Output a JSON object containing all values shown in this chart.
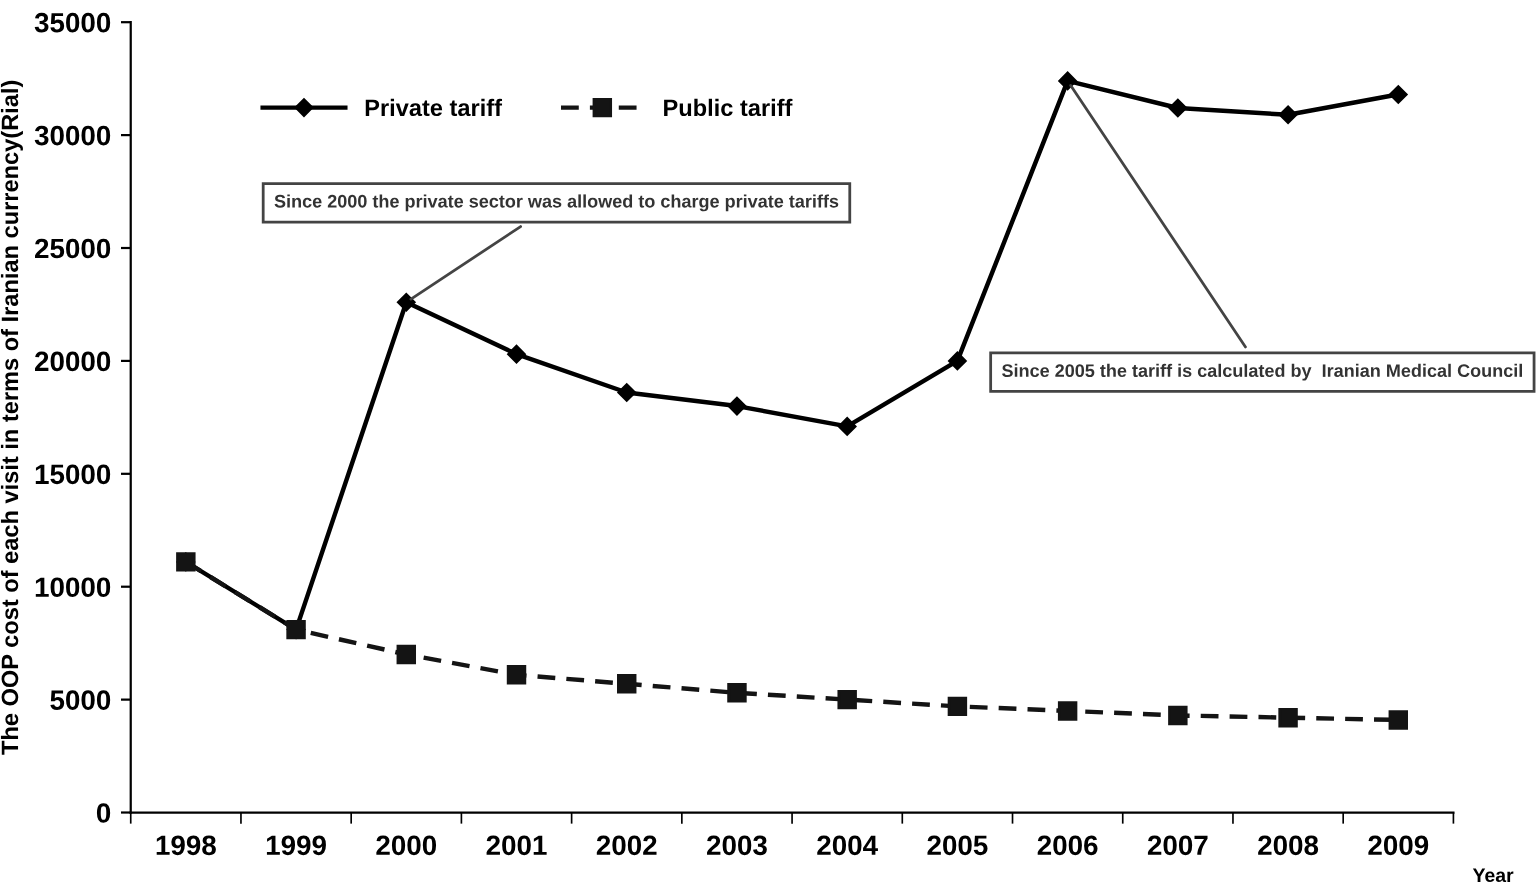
{
  "chart_data": {
    "type": "line",
    "ylabel": "The OOP cost of each visit in terms of Iranian currency(Rial)",
    "xlabel": "Year",
    "categories": [
      "1998",
      "1999",
      "2000",
      "2001",
      "2002",
      "2003",
      "2004",
      "2005",
      "2006",
      "2007",
      "2008",
      "2009"
    ],
    "series": [
      {
        "name": "Private tariff",
        "color": "#000000",
        "marker": "diamond",
        "line_style": "solid",
        "values": [
          11100,
          8100,
          22600,
          20300,
          18600,
          18000,
          17100,
          20000,
          32400,
          31200,
          30900,
          31800
        ]
      },
      {
        "name": "Public tariff",
        "color": "#141414",
        "marker": "square",
        "line_style": "dashed",
        "values": [
          11100,
          8100,
          7000,
          6100,
          5700,
          5300,
          5000,
          4700,
          4500,
          4300,
          4200,
          4100
        ]
      }
    ],
    "ylim": [
      0,
      35000
    ],
    "yticks": [
      0,
      5000,
      10000,
      15000,
      20000,
      25000,
      30000,
      35000
    ],
    "grid": false,
    "legend": "top",
    "annotations": [
      {
        "text": "Since 2000 the private sector was allowed to charge private tariffs",
        "x": "2000",
        "y": 22600
      },
      {
        "text": "Since 2005 the tariff is calculated by  Iranian Medical Council",
        "x": "2006",
        "y": 32400
      }
    ]
  }
}
